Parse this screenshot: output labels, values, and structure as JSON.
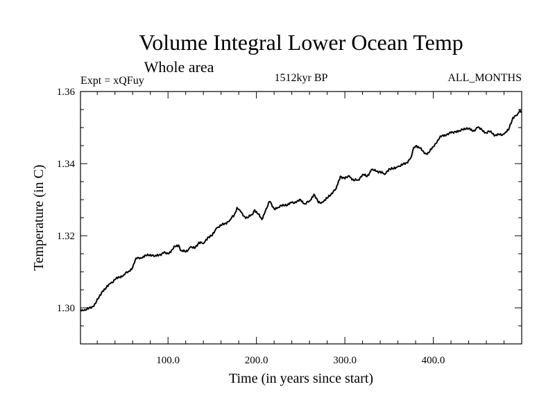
{
  "chart_data": {
    "type": "line",
    "title": "Volume Integral Lower Ocean Temp",
    "subtitle": "Whole area",
    "left_label": "Expt = xQFuy",
    "center_label": "1512kyr BP",
    "right_label": "ALL_MONTHS",
    "xlabel": "Time (in years since start)",
    "ylabel": "Temperature (in C)",
    "xlim": [
      1,
      500
    ],
    "ylim": [
      1.29,
      1.36
    ],
    "x_ticks": [
      {
        "value": 100,
        "label": "100.0"
      },
      {
        "value": 200,
        "label": "200.0"
      },
      {
        "value": 300,
        "label": "300.0"
      },
      {
        "value": 400,
        "label": "400.0"
      }
    ],
    "y_ticks": [
      {
        "value": 1.3,
        "label": "1.30"
      },
      {
        "value": 1.32,
        "label": "1.32"
      },
      {
        "value": 1.34,
        "label": "1.34"
      },
      {
        "value": 1.36,
        "label": "1.36"
      }
    ],
    "x_minor_step": 20,
    "y_minor_step": 0.005,
    "grid": false,
    "series": [
      {
        "name": "Volume Integral Lower Ocean Temp",
        "x": [
          1,
          5,
          10,
          14,
          18,
          22,
          26,
          30,
          35,
          40,
          45,
          50,
          55,
          60,
          63,
          66,
          70,
          75,
          80,
          85,
          90,
          95,
          100,
          105,
          108,
          112,
          115,
          120,
          125,
          130,
          135,
          140,
          145,
          150,
          155,
          160,
          165,
          170,
          175,
          178,
          181,
          185,
          190,
          195,
          198,
          202,
          206,
          210,
          215,
          220,
          225,
          230,
          235,
          240,
          245,
          250,
          255,
          260,
          265,
          270,
          275,
          280,
          285,
          290,
          295,
          300,
          305,
          310,
          315,
          320,
          325,
          330,
          335,
          340,
          345,
          350,
          355,
          360,
          365,
          370,
          375,
          378,
          381,
          385,
          390,
          395,
          400,
          405,
          410,
          415,
          420,
          425,
          430,
          435,
          440,
          445,
          450,
          455,
          460,
          465,
          470,
          475,
          480,
          485,
          490,
          495,
          498,
          500
        ],
        "values": [
          1.2995,
          1.2993,
          1.2997,
          1.3003,
          1.3012,
          1.303,
          1.3047,
          1.3055,
          1.3068,
          1.3078,
          1.3085,
          1.3092,
          1.31,
          1.3112,
          1.3133,
          1.314,
          1.3138,
          1.3145,
          1.3148,
          1.3143,
          1.3147,
          1.3152,
          1.315,
          1.3162,
          1.317,
          1.3174,
          1.3158,
          1.3155,
          1.3168,
          1.3165,
          1.3182,
          1.3178,
          1.3196,
          1.32,
          1.3222,
          1.3228,
          1.3235,
          1.3243,
          1.3258,
          1.3278,
          1.3272,
          1.3255,
          1.325,
          1.3258,
          1.3272,
          1.326,
          1.3245,
          1.3268,
          1.3295,
          1.3275,
          1.3278,
          1.3287,
          1.3284,
          1.3293,
          1.3292,
          1.33,
          1.3288,
          1.3296,
          1.3315,
          1.3292,
          1.3293,
          1.3304,
          1.3318,
          1.333,
          1.3365,
          1.3358,
          1.3366,
          1.3353,
          1.3355,
          1.337,
          1.3364,
          1.3383,
          1.3379,
          1.3378,
          1.337,
          1.3386,
          1.3385,
          1.3392,
          1.3396,
          1.3403,
          1.3418,
          1.3445,
          1.345,
          1.3443,
          1.3428,
          1.343,
          1.3447,
          1.3465,
          1.3478,
          1.348,
          1.3485,
          1.3489,
          1.349,
          1.3498,
          1.3497,
          1.349,
          1.35,
          1.3494,
          1.3485,
          1.349,
          1.3478,
          1.348,
          1.3482,
          1.3493,
          1.3528,
          1.3535,
          1.3548,
          1.3545
        ]
      }
    ]
  }
}
